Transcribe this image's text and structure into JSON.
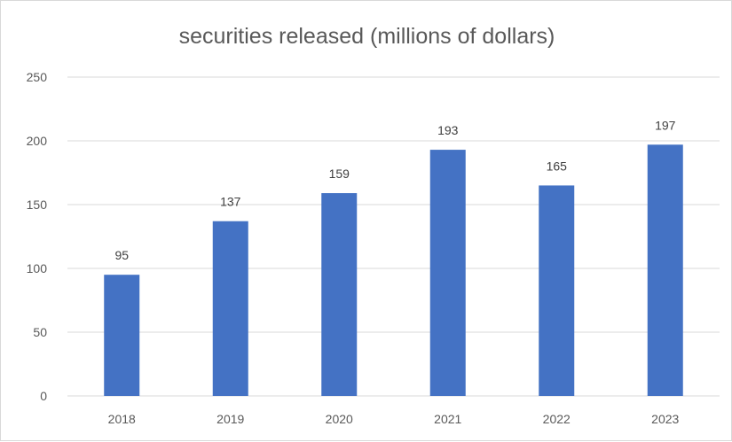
{
  "chart_data": {
    "type": "bar",
    "title": "securities released (millions of dollars)",
    "categories": [
      "2018",
      "2019",
      "2020",
      "2021",
      "2022",
      "2023"
    ],
    "values": [
      95,
      137,
      159,
      193,
      165,
      197
    ],
    "xlabel": "",
    "ylabel": "",
    "ylim": [
      0,
      250
    ],
    "yticks": [
      "0",
      "50",
      "100",
      "150",
      "200",
      "250"
    ],
    "grid": true,
    "legend": "none",
    "data_labels": true,
    "bar_color": "#4472c4",
    "grid_color": "#d9d9d9",
    "text_color": "#595959"
  }
}
